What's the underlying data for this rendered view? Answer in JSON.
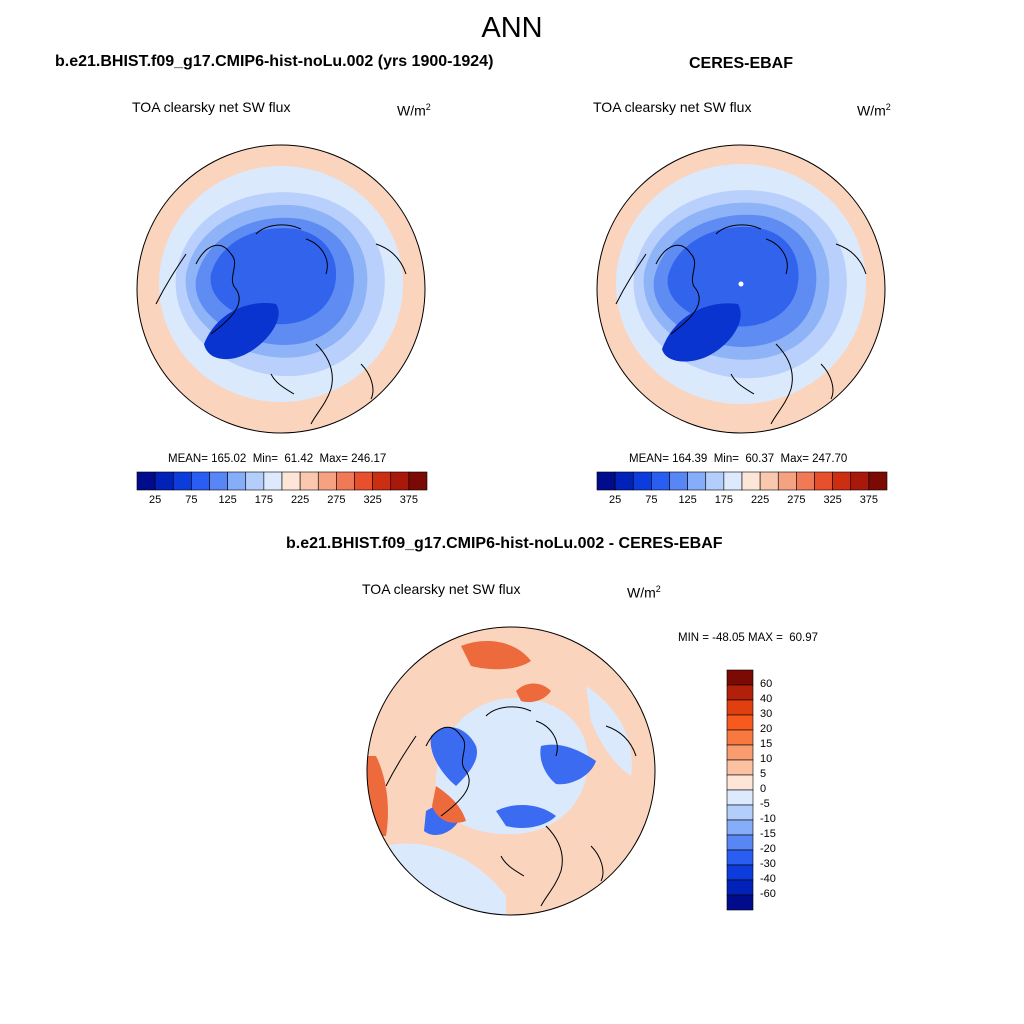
{
  "figure": {
    "title": "ANN"
  },
  "panels": [
    {
      "id": "model",
      "title": "b.e21.BHIST.f09_g17.CMIP6-hist-noLu.002 (yrs 1900-1924)",
      "variable": "TOA clearsky net SW flux",
      "units_base": "W/m",
      "units_exp": "2",
      "stats": "MEAN= 165.02  Min=  61.42  Max= 246.17",
      "mean": 165.02,
      "min": 61.42,
      "max": 246.17
    },
    {
      "id": "obs",
      "title": "CERES-EBAF",
      "variable": "TOA clearsky net SW flux",
      "units_base": "W/m",
      "units_exp": "2",
      "stats": "MEAN= 164.39  Min=  60.37  Max= 247.70",
      "mean": 164.39,
      "min": 60.37,
      "max": 247.7
    },
    {
      "id": "diff",
      "title": "b.e21.BHIST.f09_g17.CMIP6-hist-noLu.002 - CERES-EBAF",
      "variable": "TOA clearsky net SW flux",
      "units_base": "W/m",
      "units_exp": "2",
      "stats": "MIN = -48.05 MAX =  60.97",
      "min": -48.05,
      "max": 60.97
    }
  ],
  "colorbar_main": {
    "labels": [
      "25",
      "75",
      "125",
      "175",
      "225",
      "275",
      "325",
      "375"
    ],
    "colors": [
      "#000c8b",
      "#0022b8",
      "#0c3ddc",
      "#2a5ef2",
      "#5887f5",
      "#86adf8",
      "#b4cefb",
      "#ddeafe",
      "#fde6d7",
      "#f9c8ae",
      "#f5a283",
      "#f17a56",
      "#e8502d",
      "#cc2e12",
      "#a8180b",
      "#7a0a03"
    ]
  },
  "colorbar_diff": {
    "labels": [
      "60",
      "40",
      "30",
      "20",
      "15",
      "10",
      "5",
      "0",
      "-5",
      "-10",
      "-15",
      "-20",
      "-30",
      "-40",
      "-60"
    ],
    "colors": [
      "#7a0a03",
      "#b3200a",
      "#e0400f",
      "#f8591d",
      "#f8793f",
      "#f99c6f",
      "#fbc1a0",
      "#fde6d7",
      "#ddeafe",
      "#b4cefb",
      "#86adf8",
      "#5887f5",
      "#2a5ef2",
      "#0c3ddc",
      "#0022b8",
      "#000c8b"
    ]
  },
  "map_colors": {
    "ocean_far": "#fbd4bd",
    "ocean_mid": "#dbe9fd",
    "band_1": "#b8d0fb",
    "band_2": "#8fb3f7",
    "band_3": "#5f8cf3",
    "band_4": "#3163ec",
    "core": "#2b5ce8",
    "greenland": "#0a34d0",
    "diff_bg": "#fbd4bd",
    "diff_center": "#dbe9fd",
    "diff_blue": "#3a6bf0",
    "diff_red": "#ec6a3c"
  }
}
